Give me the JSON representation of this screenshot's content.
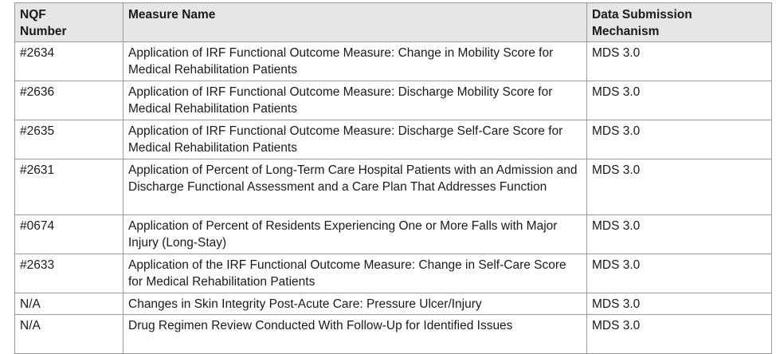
{
  "table": {
    "headers": {
      "nqf_line1": "NQF",
      "nqf_line2": "Number",
      "measure": "Measure Name",
      "mech_line1": "Data Submission",
      "mech_line2": "Mechanism"
    },
    "rows": [
      {
        "nqf": "#2634",
        "measure": "Application of IRF Functional Outcome Measure: Change in Mobility Score for Medical Rehabilitation Patients",
        "mechanism": "MDS 3.0"
      },
      {
        "nqf": "#2636",
        "measure": "Application of IRF Functional Outcome Measure: Discharge Mobility Score for Medical Rehabilitation Patients",
        "mechanism": "MDS 3.0"
      },
      {
        "nqf": "#2635",
        "measure": "Application of IRF Functional Outcome Measure: Discharge Self-Care Score for Medical Rehabilitation Patients",
        "mechanism": "MDS 3.0"
      },
      {
        "nqf": "#2631",
        "measure": "Application of Percent of Long-Term Care Hospital Patients with an Admission and Discharge Functional Assessment and a Care Plan That Addresses Function",
        "mechanism": "MDS 3.0"
      },
      {
        "nqf": "#0674",
        "measure": "Application of Percent of Residents Experiencing One or More Falls with Major Injury (Long-Stay)",
        "mechanism": "MDS 3.0"
      },
      {
        "nqf": "#2633",
        "measure": "Application of the IRF Functional Outcome Measure: Change in Self-Care Score for Medical Rehabilitation Patients",
        "mechanism": "MDS 3.0"
      },
      {
        "nqf": "N/A",
        "measure": "Changes in Skin Integrity Post-Acute Care: Pressure Ulcer/Injury",
        "mechanism": "MDS 3.0"
      },
      {
        "nqf": "N/A",
        "measure": "Drug Regimen Review Conducted With Follow-Up for Identified Issues",
        "mechanism": "MDS 3.0"
      }
    ]
  }
}
